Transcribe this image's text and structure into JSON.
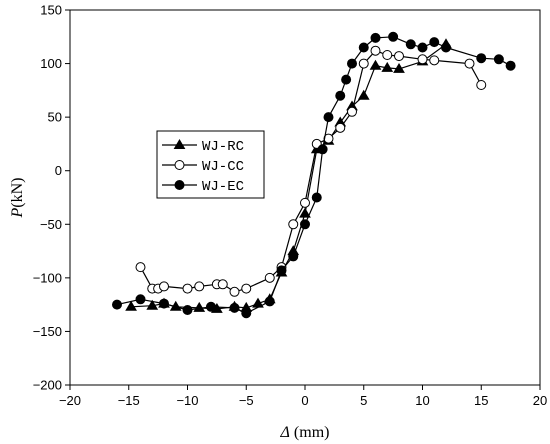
{
  "chart_data": {
    "type": "line",
    "title": "",
    "xlabel": "Δ (mm)",
    "xlabel_symbol": "Δ",
    "xlabel_unit": "(mm)",
    "ylabel": "P(kN)",
    "ylabel_symbol": "P",
    "ylabel_unit": "(kN)",
    "xlim": [
      -20,
      20
    ],
    "ylim": [
      -200,
      150
    ],
    "xticks": [
      -20,
      -15,
      -10,
      -5,
      0,
      5,
      10,
      15,
      20
    ],
    "yticks": [
      -200,
      -150,
      -100,
      -50,
      0,
      50,
      100,
      150
    ],
    "grid": false,
    "legend_position": "center-left",
    "series": [
      {
        "name": "WJ-RC",
        "marker": "filled-triangle",
        "color": "#000000",
        "x": [
          -14.8,
          -13,
          -12,
          -11,
          -9,
          -7.5,
          -6,
          -5,
          -4,
          -3,
          -2,
          -1,
          0,
          1,
          2,
          3,
          4,
          5,
          6,
          7,
          8,
          10,
          12
        ],
        "y": [
          -127,
          -126,
          -124,
          -127,
          -128,
          -129,
          -127,
          -128,
          -124,
          -120,
          -95,
          -75,
          -40,
          20,
          28,
          45,
          60,
          70,
          98,
          96,
          95,
          102,
          118
        ]
      },
      {
        "name": "WJ-CC",
        "marker": "open-circle",
        "color": "#000000",
        "x": [
          -14,
          -13,
          -12.5,
          -12,
          -10,
          -9,
          -7.5,
          -7,
          -6,
          -5,
          -3,
          -2,
          -1,
          0,
          1,
          2,
          3,
          4,
          5,
          6,
          7,
          8,
          10,
          11,
          14,
          15
        ],
        "y": [
          -90,
          -110,
          -110,
          -108,
          -110,
          -108,
          -106,
          -106,
          -113,
          -110,
          -100,
          -90,
          -50,
          -30,
          25,
          30,
          40,
          55,
          100,
          112,
          108,
          107,
          104,
          103,
          100,
          80
        ]
      },
      {
        "name": "WJ-EC",
        "marker": "filled-circle",
        "color": "#000000",
        "x": [
          -16,
          -14,
          -12,
          -10,
          -8,
          -6,
          -5,
          -3,
          -2,
          -1,
          0,
          1,
          1.5,
          2,
          3,
          3.5,
          4,
          5,
          6,
          7.5,
          9,
          10,
          11,
          12,
          15,
          16.5,
          17.5
        ],
        "y": [
          -125,
          -120,
          -124,
          -130,
          -127,
          -128,
          -133,
          -122,
          -93,
          -80,
          -50,
          -25,
          20,
          50,
          70,
          85,
          100,
          115,
          124,
          125,
          118,
          115,
          120,
          115,
          105,
          104,
          98
        ]
      }
    ]
  }
}
